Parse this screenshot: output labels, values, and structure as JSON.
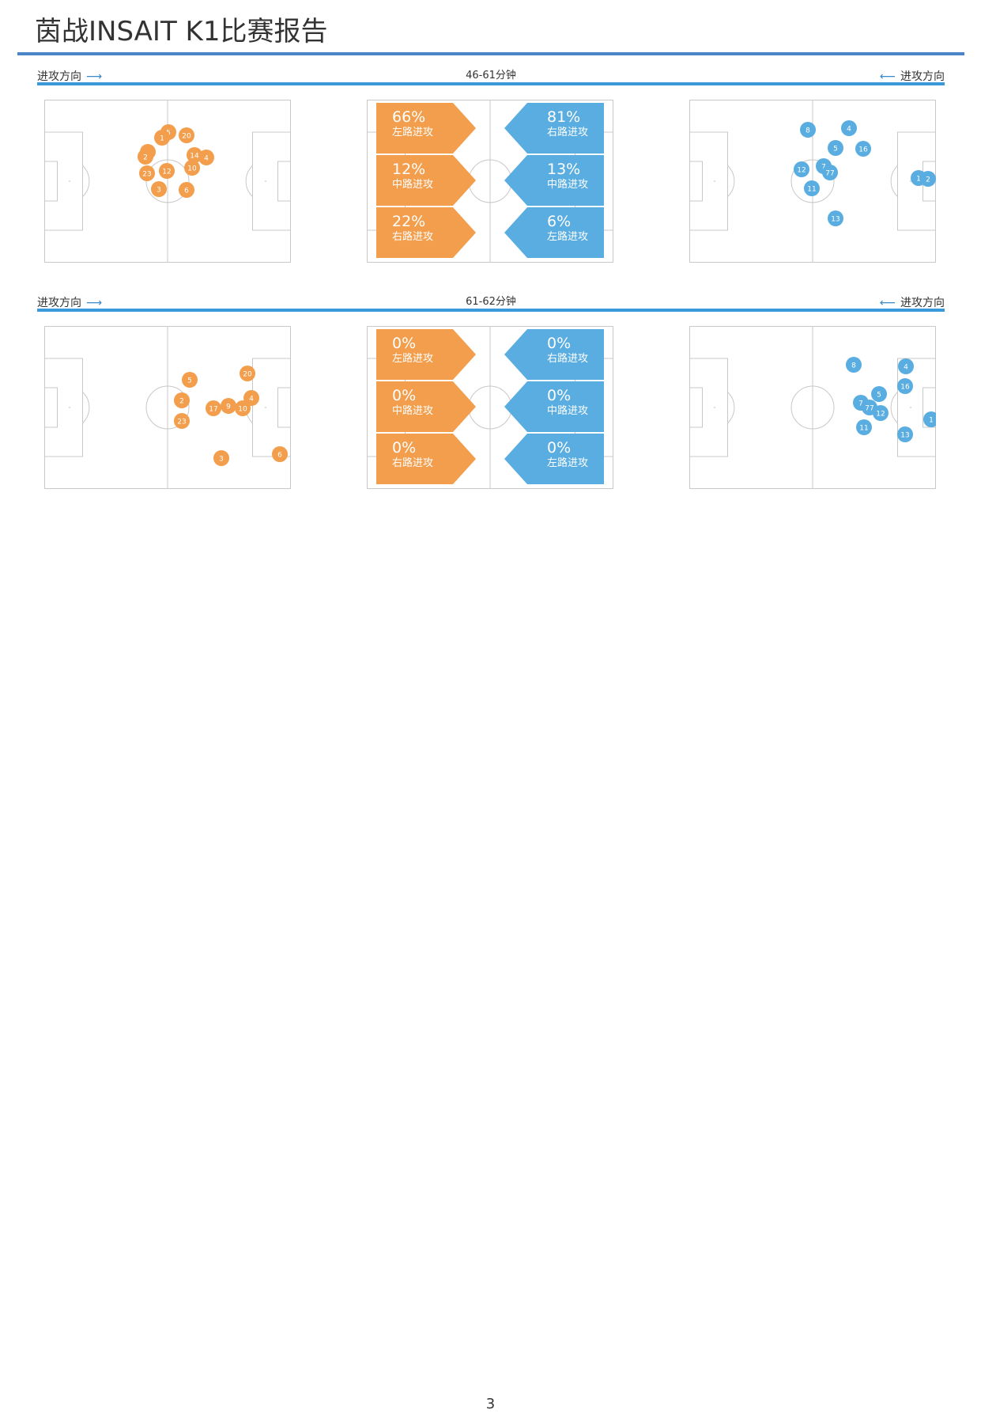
{
  "title": "茵战INSAIT K1比赛报告",
  "page_number": "3",
  "colors": {
    "home": "#f29e4c",
    "away": "#5aade0",
    "rule": "#3a9ad9",
    "pitch_line": "#c8c8c8"
  },
  "sections": [
    {
      "attack_dir_left": "进攻方向",
      "attack_dir_right": "进攻方向",
      "time_range": "46-61分钟",
      "home_players": [
        "5",
        "1",
        "20",
        "9",
        "2",
        "14",
        "4",
        "10",
        "12",
        "23",
        "3",
        "6"
      ],
      "home_zones": [
        {
          "pct": "66%",
          "label": "左路进攻"
        },
        {
          "pct": "12%",
          "label": "中路进攻"
        },
        {
          "pct": "22%",
          "label": "右路进攻"
        }
      ],
      "away_zones": [
        {
          "pct": "81%",
          "label": "右路进攻"
        },
        {
          "pct": "13%",
          "label": "中路进攻"
        },
        {
          "pct": "6%",
          "label": "左路进攻"
        }
      ],
      "away_players": [
        "8",
        "4",
        "5",
        "16",
        "12",
        "7",
        "77",
        "11",
        "13",
        "1",
        "2"
      ]
    },
    {
      "attack_dir_left": "进攻方向",
      "attack_dir_right": "进攻方向",
      "time_range": "61-62分钟",
      "home_players": [
        "20",
        "5",
        "2",
        "4",
        "17",
        "9",
        "10",
        "23",
        "3",
        "6"
      ],
      "home_zones": [
        {
          "pct": "0%",
          "label": "左路进攻"
        },
        {
          "pct": "0%",
          "label": "中路进攻"
        },
        {
          "pct": "0%",
          "label": "右路进攻"
        }
      ],
      "away_zones": [
        {
          "pct": "0%",
          "label": "右路进攻"
        },
        {
          "pct": "0%",
          "label": "中路进攻"
        },
        {
          "pct": "0%",
          "label": "左路进攻"
        }
      ],
      "away_players": [
        "8",
        "4",
        "16",
        "5",
        "7",
        "77",
        "12",
        "11",
        "13",
        "1"
      ]
    }
  ]
}
